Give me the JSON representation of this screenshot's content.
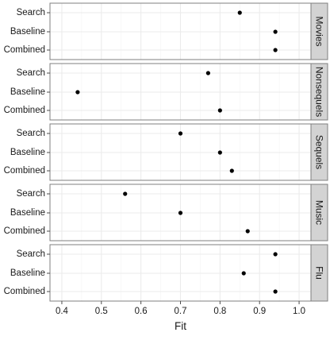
{
  "chart_data": {
    "type": "scatter",
    "layout": "faceted-dot-plot",
    "xlabel": "Fit",
    "ylabel": "",
    "xlim": [
      0.37,
      1.03
    ],
    "x_ticks": [
      0.4,
      0.5,
      0.6,
      0.7,
      0.8,
      0.9,
      1.0
    ],
    "x_tick_labels": [
      "0.4",
      "0.5",
      "0.6",
      "0.7",
      "0.8",
      "0.9",
      "1.0"
    ],
    "categories": [
      "Search",
      "Baseline",
      "Combined"
    ],
    "grid": true,
    "panel_background": "#ffffff",
    "grid_color": "#ebebeb",
    "strip_color": "#d3d3d3",
    "point_color": "#000000",
    "panels": [
      {
        "name": "Movies",
        "values": {
          "Search": 0.85,
          "Baseline": 0.94,
          "Combined": 0.94
        }
      },
      {
        "name": "Nonsequels",
        "values": {
          "Search": 0.77,
          "Baseline": 0.44,
          "Combined": 0.8
        }
      },
      {
        "name": "Sequels",
        "values": {
          "Search": 0.7,
          "Baseline": 0.8,
          "Combined": 0.83
        }
      },
      {
        "name": "Music",
        "values": {
          "Search": 0.56,
          "Baseline": 0.7,
          "Combined": 0.87
        }
      },
      {
        "name": "Flu",
        "values": {
          "Search": 0.94,
          "Baseline": 0.86,
          "Combined": 0.94
        }
      }
    ]
  }
}
